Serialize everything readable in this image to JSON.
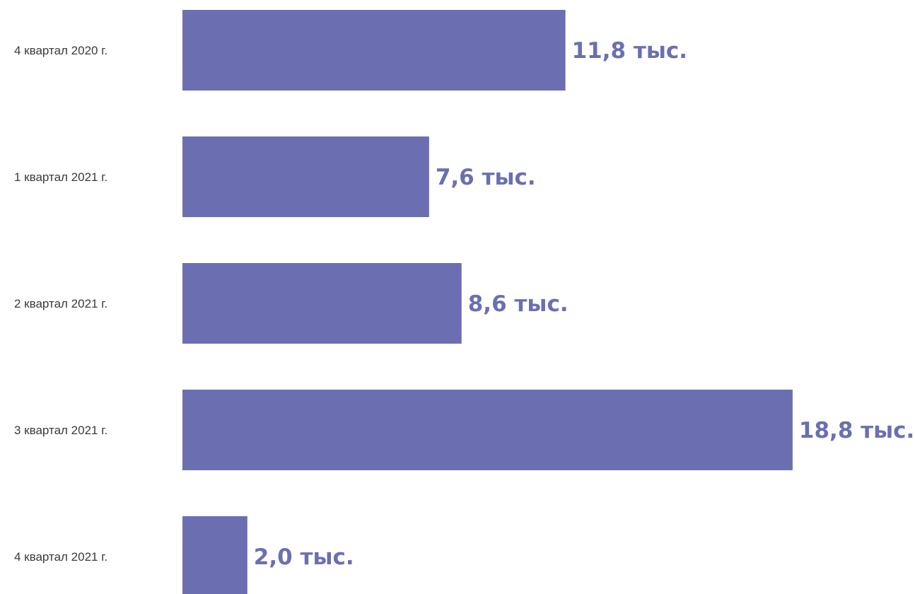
{
  "colors": {
    "bar": "#6b6fb1",
    "value_label": "#6b6fb1",
    "category_label": "#3a3a3a",
    "background": "#ffffff"
  },
  "chart_data": {
    "type": "bar",
    "orientation": "horizontal",
    "title": "",
    "xlabel": "",
    "ylabel": "",
    "grid": false,
    "categories": [
      "4 квартал 2020 г.",
      "1 квартал 2021 г.",
      "2 квартал 2021 г.",
      "3 квартал 2021 г.",
      "4 квартал 2021 г."
    ],
    "values": [
      11.8,
      7.6,
      8.6,
      18.8,
      2.0
    ],
    "value_labels": [
      "11,8 тыс.",
      "7,6 тыс.",
      "8,6 тыс.",
      "18,8 тыс.",
      "2,0 тыс."
    ],
    "unit": "тыс."
  }
}
